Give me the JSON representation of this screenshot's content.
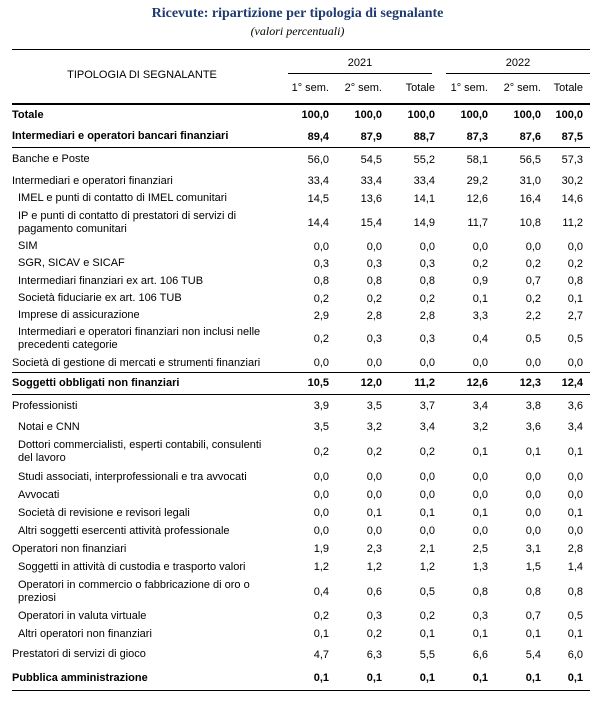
{
  "title": "Ricevute: ripartizione per tipologia di segnalante",
  "subtitle": "(valori percentuali)",
  "header": {
    "label_column": "TIPOLOGIA DI SEGNALANTE",
    "years": [
      "2021",
      "2022"
    ],
    "columns": [
      "1° sem.",
      "2° sem.",
      "Totale",
      "1° sem.",
      "2° sem.",
      "Totale"
    ]
  },
  "rows": [
    {
      "label": "Totale",
      "values": [
        "100,0",
        "100,0",
        "100,0",
        "100,0",
        "100,0",
        "100,0"
      ]
    },
    {
      "label": "Intermediari e operatori bancari finanziari",
      "values": [
        "89,4",
        "87,9",
        "88,7",
        "87,3",
        "87,6",
        "87,5"
      ]
    },
    {
      "label": "Banche e Poste",
      "values": [
        "56,0",
        "54,5",
        "55,2",
        "58,1",
        "56,5",
        "57,3"
      ]
    },
    {
      "label": "Intermediari e operatori finanziari",
      "values": [
        "33,4",
        "33,4",
        "33,4",
        "29,2",
        "31,0",
        "30,2"
      ]
    },
    {
      "label": "IMEL e punti di contatto di IMEL comunitari",
      "values": [
        "14,5",
        "13,6",
        "14,1",
        "12,6",
        "16,4",
        "14,6"
      ]
    },
    {
      "label": "IP e punti di contatto di prestatori di servizi di pagamento comunitari",
      "values": [
        "14,4",
        "15,4",
        "14,9",
        "11,7",
        "10,8",
        "11,2"
      ]
    },
    {
      "label": "SIM",
      "values": [
        "0,0",
        "0,0",
        "0,0",
        "0,0",
        "0,0",
        "0,0"
      ]
    },
    {
      "label": "SGR, SICAV e SICAF",
      "values": [
        "0,3",
        "0,3",
        "0,3",
        "0,2",
        "0,2",
        "0,2"
      ]
    },
    {
      "label": "Intermediari finanziari ex art. 106 TUB",
      "values": [
        "0,8",
        "0,8",
        "0,8",
        "0,9",
        "0,7",
        "0,8"
      ]
    },
    {
      "label": "Società fiduciarie ex art. 106 TUB",
      "values": [
        "0,2",
        "0,2",
        "0,2",
        "0,1",
        "0,2",
        "0,1"
      ]
    },
    {
      "label": "Imprese di assicurazione",
      "values": [
        "2,9",
        "2,8",
        "2,8",
        "3,3",
        "2,2",
        "2,7"
      ]
    },
    {
      "label": "Intermediari e operatori finanziari non inclusi nelle precedenti categorie",
      "values": [
        "0,2",
        "0,3",
        "0,3",
        "0,4",
        "0,5",
        "0,5"
      ]
    },
    {
      "label": "Società di gestione di mercati e strumenti finanziari",
      "values": [
        "0,0",
        "0,0",
        "0,0",
        "0,0",
        "0,0",
        "0,0"
      ]
    },
    {
      "label": "Soggetti obbligati non finanziari",
      "values": [
        "10,5",
        "12,0",
        "11,2",
        "12,6",
        "12,3",
        "12,4"
      ]
    },
    {
      "label": "Professionisti",
      "values": [
        "3,9",
        "3,5",
        "3,7",
        "3,4",
        "3,8",
        "3,6"
      ]
    },
    {
      "label": "Notai e CNN",
      "values": [
        "3,5",
        "3,2",
        "3,4",
        "3,2",
        "3,6",
        "3,4"
      ]
    },
    {
      "label": "Dottori commercialisti, esperti contabili, consulenti del lavoro",
      "values": [
        "0,2",
        "0,2",
        "0,2",
        "0,1",
        "0,1",
        "0,1"
      ]
    },
    {
      "label": "Studi associati, interprofessionali e tra avvocati",
      "values": [
        "0,0",
        "0,0",
        "0,0",
        "0,0",
        "0,0",
        "0,0"
      ]
    },
    {
      "label": "Avvocati",
      "values": [
        "0,0",
        "0,0",
        "0,0",
        "0,0",
        "0,0",
        "0,0"
      ]
    },
    {
      "label": "Società di revisione e revisori legali",
      "values": [
        "0,0",
        "0,1",
        "0,1",
        "0,1",
        "0,0",
        "0,1"
      ]
    },
    {
      "label": "Altri soggetti esercenti attività professionale",
      "values": [
        "0,0",
        "0,0",
        "0,0",
        "0,0",
        "0,0",
        "0,0"
      ]
    },
    {
      "label": "Operatori non finanziari",
      "values": [
        "1,9",
        "2,3",
        "2,1",
        "2,5",
        "3,1",
        "2,8"
      ]
    },
    {
      "label": "Soggetti in attività di custodia e trasporto valori",
      "values": [
        "1,2",
        "1,2",
        "1,2",
        "1,3",
        "1,5",
        "1,4"
      ]
    },
    {
      "label": "Operatori in commercio o fabbricazione di oro o preziosi",
      "values": [
        "0,4",
        "0,6",
        "0,5",
        "0,8",
        "0,8",
        "0,8"
      ]
    },
    {
      "label": "Operatori in valuta virtuale",
      "values": [
        "0,2",
        "0,3",
        "0,2",
        "0,3",
        "0,7",
        "0,5"
      ]
    },
    {
      "label": "Altri operatori non finanziari",
      "values": [
        "0,1",
        "0,2",
        "0,1",
        "0,1",
        "0,1",
        "0,1"
      ]
    },
    {
      "label": "Prestatori di servizi di gioco",
      "values": [
        "4,7",
        "6,3",
        "5,5",
        "6,6",
        "5,4",
        "6,0"
      ]
    },
    {
      "label": "Pubblica amministrazione",
      "values": [
        "0,1",
        "0,1",
        "0,1",
        "0,1",
        "0,1",
        "0,1"
      ]
    }
  ]
}
